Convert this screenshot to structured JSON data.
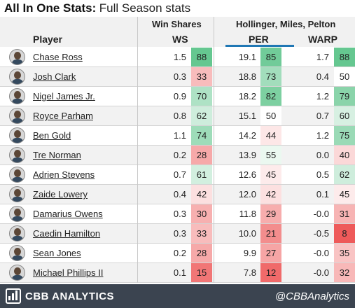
{
  "title": {
    "main": "All In One Stats:",
    "sub": "Full Season stats"
  },
  "groups": {
    "win_shares": "Win Shares",
    "hmp": "Hollinger, Miles, Pelton"
  },
  "columns": {
    "player": "Player",
    "ws": "WS",
    "per": "PER",
    "warp": "WARP"
  },
  "colors": {
    "high": "#5dc48a",
    "mid": "#ffffff",
    "low": "#ee5a5a",
    "underline": "#1f77b4",
    "footer": "#3b4450"
  },
  "players": [
    {
      "name": "Chase Ross",
      "ws": "1.5",
      "ws_pct": "88",
      "per": "19.1",
      "per_pct": "85",
      "warp": "1.7",
      "warp_pct": "88"
    },
    {
      "name": "Josh Clark",
      "ws": "0.3",
      "ws_pct": "33",
      "per": "18.8",
      "per_pct": "73",
      "warp": "0.4",
      "warp_pct": "50"
    },
    {
      "name": "Nigel James Jr.",
      "ws": "0.9",
      "ws_pct": "70",
      "per": "18.2",
      "per_pct": "82",
      "warp": "1.2",
      "warp_pct": "79"
    },
    {
      "name": "Royce Parham",
      "ws": "0.8",
      "ws_pct": "62",
      "per": "15.1",
      "per_pct": "50",
      "warp": "0.7",
      "warp_pct": "60"
    },
    {
      "name": "Ben Gold",
      "ws": "1.1",
      "ws_pct": "74",
      "per": "14.2",
      "per_pct": "44",
      "warp": "1.2",
      "warp_pct": "75"
    },
    {
      "name": "Tre Norman",
      "ws": "0.2",
      "ws_pct": "28",
      "per": "13.9",
      "per_pct": "55",
      "warp": "0.0",
      "warp_pct": "40"
    },
    {
      "name": "Adrien Stevens",
      "ws": "0.7",
      "ws_pct": "61",
      "per": "12.6",
      "per_pct": "45",
      "warp": "0.5",
      "warp_pct": "62"
    },
    {
      "name": "Zaide Lowery",
      "ws": "0.4",
      "ws_pct": "42",
      "per": "12.0",
      "per_pct": "42",
      "warp": "0.1",
      "warp_pct": "45"
    },
    {
      "name": "Damarius Owens",
      "ws": "0.3",
      "ws_pct": "30",
      "per": "11.8",
      "per_pct": "29",
      "warp": "-0.0",
      "warp_pct": "31"
    },
    {
      "name": "Caedin Hamilton",
      "ws": "0.3",
      "ws_pct": "33",
      "per": "10.0",
      "per_pct": "21",
      "warp": "-0.5",
      "warp_pct": "8"
    },
    {
      "name": "Sean Jones",
      "ws": "0.2",
      "ws_pct": "28",
      "per": "9.9",
      "per_pct": "27",
      "warp": "-0.0",
      "warp_pct": "35"
    },
    {
      "name": "Michael Phillips II",
      "ws": "0.1",
      "ws_pct": "15",
      "per": "7.8",
      "per_pct": "12",
      "warp": "-0.0",
      "warp_pct": "32"
    }
  ],
  "footer": {
    "brand": "CBB ANALYTICS",
    "handle": "@CBBAnalytics"
  }
}
